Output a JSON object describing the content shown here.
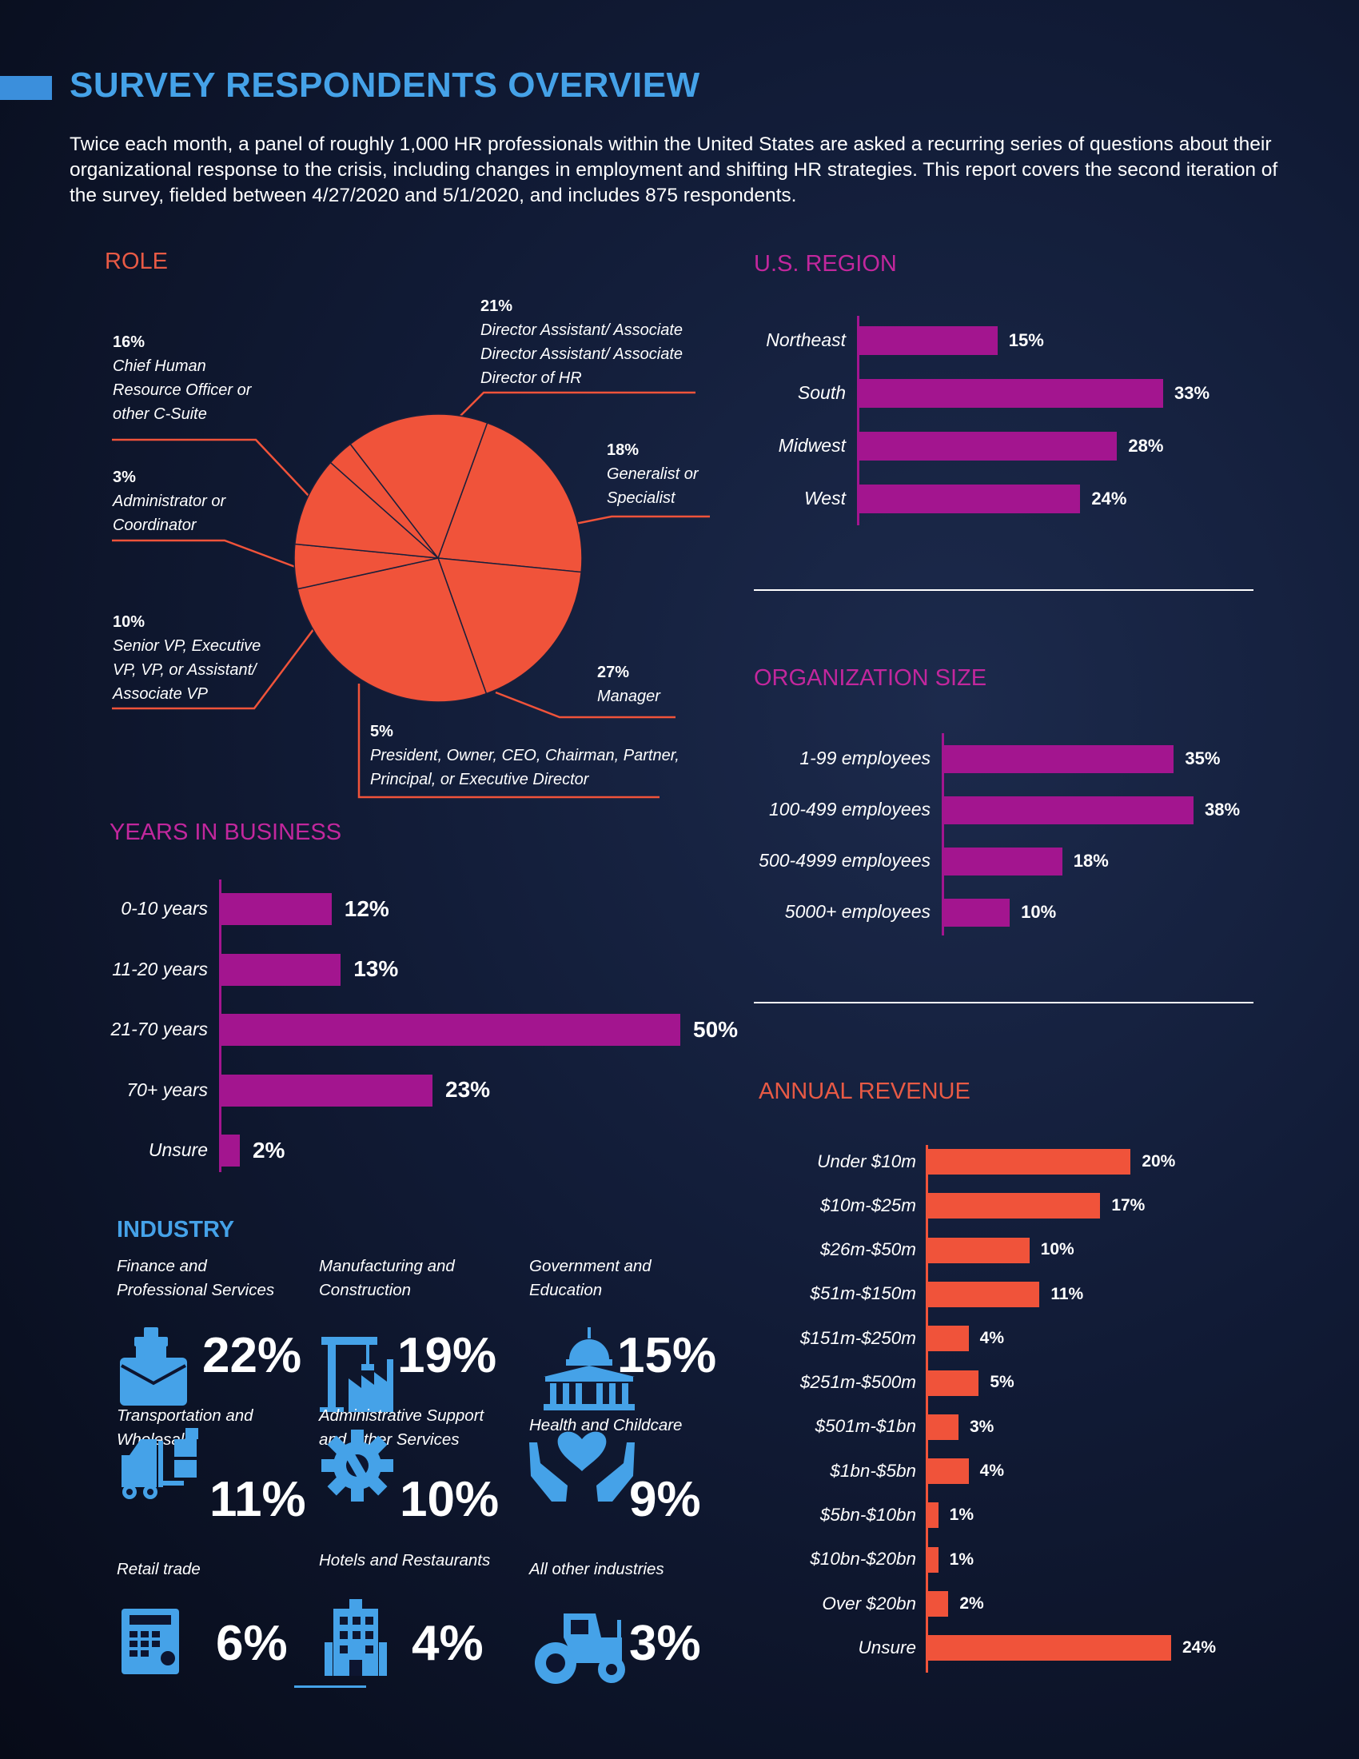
{
  "header": {
    "title": "SURVEY RESPONDENTS OVERVIEW",
    "intro": "Twice each month, a panel of roughly 1,000 HR professionals within the United States are asked a recurring series of questions about their organizational response to the crisis, including changes in employment and shifting HR strategies. This report covers the second iteration of the survey, fielded between 4/27/2020 and 5/1/2020, and includes 875 respondents."
  },
  "colors": {
    "accent_blue": "#45a2e8",
    "orange": "#f0533a",
    "magenta": "#a3158f",
    "label_orange": "#e85a45",
    "label_magenta": "#c2279d"
  },
  "chart_data": [
    {
      "id": "role",
      "type": "pie",
      "title": "ROLE",
      "slices": [
        {
          "label": "Director Assistant/ Associate Director Assistant/ Associate Director of HR",
          "pct_text": "21%",
          "value": 21
        },
        {
          "label": "Generalist or Specialist",
          "pct_text": "18%",
          "value": 18
        },
        {
          "label": "Manager",
          "pct_text": "27%",
          "value": 27
        },
        {
          "label": "President, Owner, CEO, Chairman, Partner, Principal, or Executive Director",
          "pct_text": "5%",
          "value": 5
        },
        {
          "label": "Senior VP, Executive VP, VP, or Assistant/ Associate VP",
          "pct_text": "10%",
          "value": 10
        },
        {
          "label": "Administrator or Coordinator",
          "pct_text": "3%",
          "value": 3
        },
        {
          "label": "Chief Human Resource Officer or other C-Suite",
          "pct_text": "16%",
          "value": 16
        }
      ]
    },
    {
      "id": "region",
      "type": "bar",
      "orientation": "horizontal",
      "title": "U.S. REGION",
      "categories": [
        "Northeast",
        "South",
        "Midwest",
        "West"
      ],
      "values": [
        15,
        33,
        28,
        24
      ],
      "value_labels": [
        "15%",
        "33%",
        "28%",
        "24%"
      ],
      "xlim": [
        0,
        33
      ]
    },
    {
      "id": "org_size",
      "type": "bar",
      "orientation": "horizontal",
      "title": "ORGANIZATION SIZE",
      "categories": [
        "1-99 employees",
        "100-499 employees",
        "500-4999 employees",
        "5000+ employees"
      ],
      "values": [
        35,
        38,
        18,
        10
      ],
      "value_labels": [
        "35%",
        "38%",
        "18%",
        "10%"
      ],
      "xlim": [
        0,
        38
      ]
    },
    {
      "id": "years",
      "type": "bar",
      "orientation": "horizontal",
      "title": "YEARS IN BUSINESS",
      "categories": [
        "0-10 years",
        "11-20 years",
        "21-70 years",
        "70+ years",
        "Unsure"
      ],
      "values": [
        12,
        13,
        50,
        23,
        2
      ],
      "value_labels": [
        "12%",
        "13%",
        "50%",
        "23%",
        "2%"
      ],
      "xlim": [
        0,
        50
      ]
    },
    {
      "id": "revenue",
      "type": "bar",
      "orientation": "horizontal",
      "title": "ANNUAL REVENUE",
      "categories": [
        "Under $10m",
        "$10m-$25m",
        "$26m-$50m",
        "$51m-$150m",
        "$151m-$250m",
        "$251m-$500m",
        "$501m-$1bn",
        "$1bn-$5bn",
        "$5bn-$10bn",
        "$10bn-$20bn",
        "Over $20bn",
        "Unsure"
      ],
      "values": [
        20,
        17,
        10,
        11,
        4,
        5,
        3,
        4,
        1,
        1,
        2,
        24
      ],
      "value_labels": [
        "20%",
        "17%",
        "10%",
        "11%",
        "4%",
        "5%",
        "3%",
        "4%",
        "1%",
        "1%",
        "2%",
        "24%"
      ],
      "xlim": [
        0,
        24
      ]
    }
  ],
  "industry": {
    "title": "INDUSTRY",
    "items": [
      {
        "label": "Finance and Professional Services",
        "pct": "22%",
        "icon": "briefcase-icon"
      },
      {
        "label": "Manufacturing and Construction",
        "pct": "19%",
        "icon": "crane-factory-icon"
      },
      {
        "label": "Government and Education",
        "pct": "15%",
        "icon": "capitol-building-icon"
      },
      {
        "label": "Transportation and Wholesale",
        "pct": "11%",
        "icon": "forklift-icon"
      },
      {
        "label": "Administrative Support and Other Services",
        "pct": "10%",
        "icon": "gear-wrench-icon"
      },
      {
        "label": "Health and Childcare",
        "pct": "9%",
        "icon": "heart-hands-icon"
      },
      {
        "label": "Retail trade",
        "pct": "6%",
        "icon": "cash-register-icon"
      },
      {
        "label": "Hotels and Restaurants",
        "pct": "4%",
        "icon": "hotel-icon"
      },
      {
        "label": "All other industries",
        "pct": "3%",
        "icon": "tractor-icon"
      }
    ]
  }
}
